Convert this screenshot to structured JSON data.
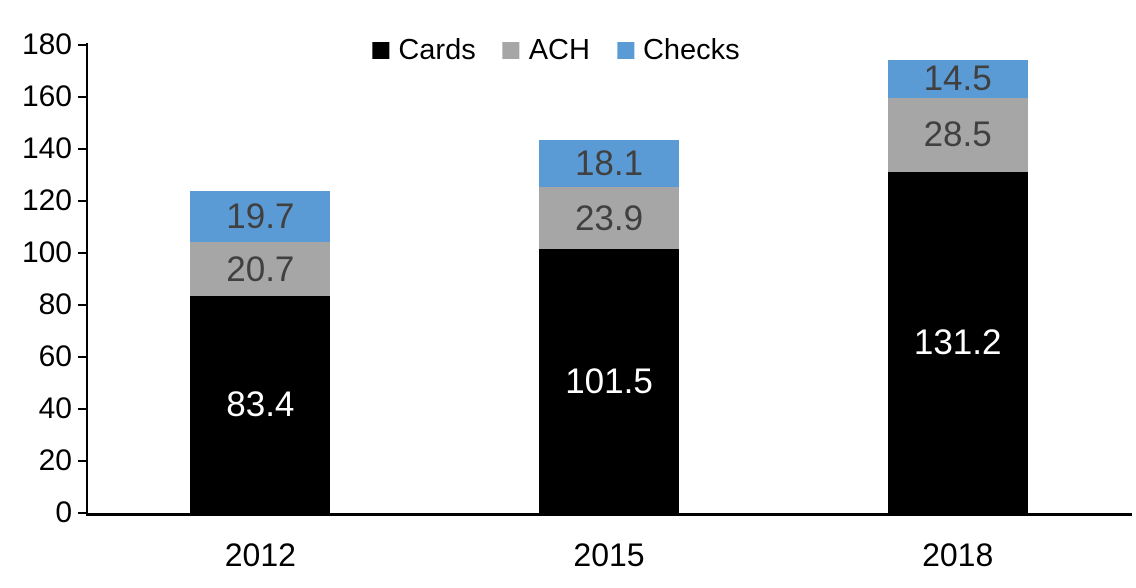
{
  "chart_data": {
    "type": "bar",
    "stacked": true,
    "categories": [
      "2012",
      "2015",
      "2018"
    ],
    "series": [
      {
        "name": "Cards",
        "color": "#000000",
        "label_color": "#ffffff",
        "values": [
          83.4,
          101.5,
          131.2
        ]
      },
      {
        "name": "ACH",
        "color": "#a6a6a6",
        "label_color": "#404040",
        "values": [
          20.7,
          23.9,
          28.5
        ]
      },
      {
        "name": "Checks",
        "color": "#5b9bd5",
        "label_color": "#404040",
        "values": [
          19.7,
          18.1,
          14.5
        ]
      }
    ],
    "totals": [
      123.8,
      143.5,
      174.2
    ],
    "ylim": [
      0,
      180
    ],
    "ytick_step": 20,
    "ytick_labels": [
      "0",
      "20",
      "40",
      "60",
      "80",
      "100",
      "120",
      "140",
      "160",
      "180"
    ],
    "xlabel": "",
    "ylabel": "",
    "grid": false,
    "legend_position": "top",
    "data_labels": true,
    "value_decimals": 1,
    "axis_color": "#000000",
    "background_color": "#ffffff"
  }
}
